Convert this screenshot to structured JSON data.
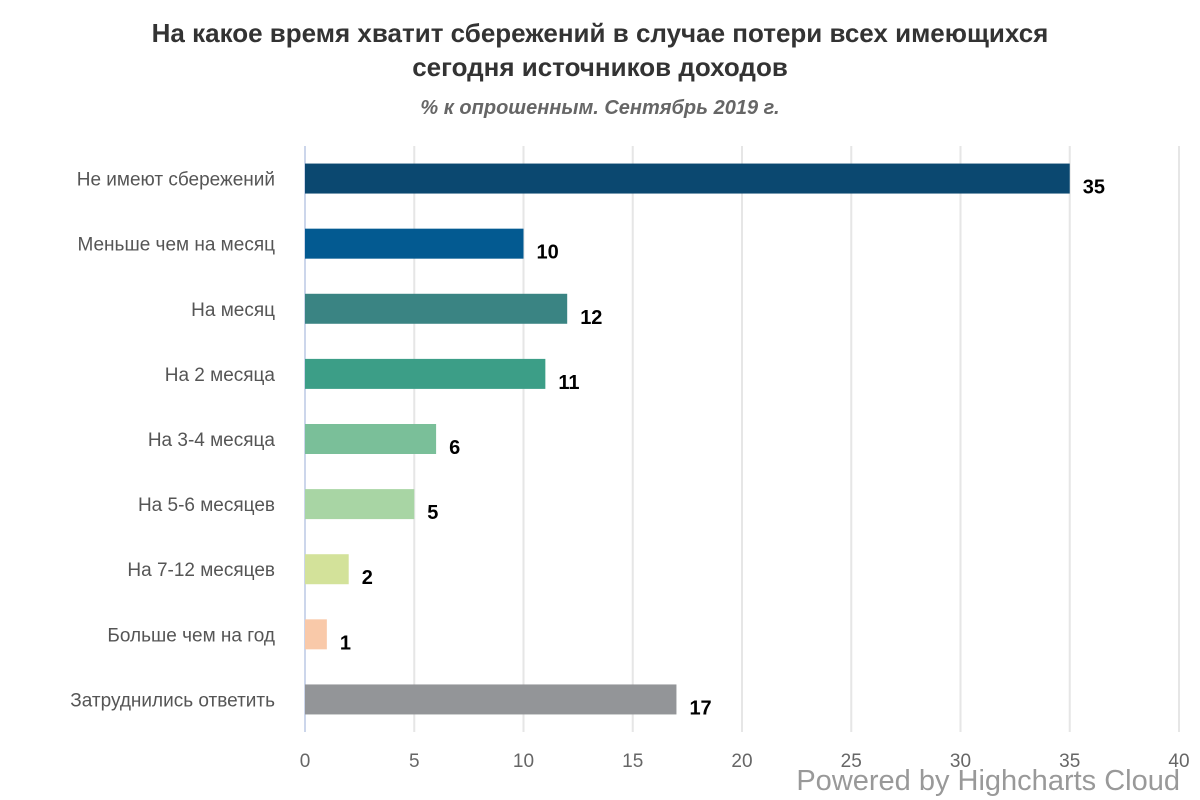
{
  "chart_data": {
    "type": "bar",
    "orientation": "horizontal",
    "title_lines": [
      "На какое время хватит сбережений в случае потери всех имеющихся",
      "сегодня источников доходов"
    ],
    "subtitle": "% к опрошенным. Сентябрь 2019 г.",
    "categories": [
      "Не имеют сбережений",
      "Меньше чем на месяц",
      "На месяц",
      "На 2 месяца",
      "На 3-4 месяца",
      "На 5-6 месяцев",
      "На 7-12 месяцев",
      "Больше чем на год",
      "Затруднились ответить"
    ],
    "values": [
      35,
      10,
      12,
      11,
      6,
      5,
      2,
      1,
      17
    ],
    "colors": [
      "#0b4870",
      "#035a91",
      "#3a8483",
      "#3c9e87",
      "#7abf99",
      "#a8d5a4",
      "#d3e29a",
      "#f9c9a9",
      "#939598"
    ],
    "xlim": [
      0,
      40
    ],
    "ticks": [
      0,
      5,
      10,
      15,
      20,
      25,
      30,
      35,
      40
    ],
    "grid": true,
    "legend": "none",
    "data_labels": true
  },
  "credits": "Powered by Highcharts Cloud"
}
